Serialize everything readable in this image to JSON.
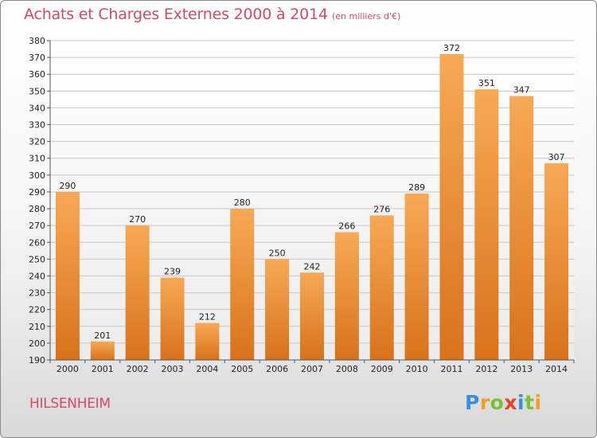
{
  "title": "Achats et Charges Externes 2000 à 2014",
  "subtitle": "(en milliers d'€)",
  "commune": "HILSENHEIM",
  "logo": {
    "letters": [
      {
        "char": "P",
        "color": "#3b8fd6"
      },
      {
        "char": "r",
        "color": "#f0a020"
      },
      {
        "char": "o",
        "color": "#7bbf3a"
      },
      {
        "char": "x",
        "color": "#e8412c"
      },
      {
        "char": "i",
        "color": "#3b8fd6"
      },
      {
        "char": "t",
        "color": "#7bbf3a"
      },
      {
        "char": "i",
        "color": "#f0a020"
      }
    ]
  },
  "colors": {
    "title": "#d04c63",
    "bar_top": "#f7a955",
    "bar_bottom": "#d8721a",
    "grid": "#c8c8c8"
  },
  "chart_data": {
    "type": "bar",
    "title": "Achats et Charges Externes 2000 à 2014",
    "subtitle": "(en milliers d'€)",
    "categories": [
      "2000",
      "2001",
      "2002",
      "2003",
      "2004",
      "2005",
      "2006",
      "2007",
      "2008",
      "2009",
      "2010",
      "2011",
      "2012",
      "2013",
      "2014"
    ],
    "values": [
      290,
      201,
      270,
      239,
      212,
      280,
      250,
      242,
      266,
      276,
      289,
      372,
      351,
      347,
      307
    ],
    "ylim": [
      190,
      380
    ],
    "yticks": [
      190,
      200,
      210,
      220,
      230,
      240,
      250,
      260,
      270,
      280,
      290,
      300,
      310,
      320,
      330,
      340,
      350,
      360,
      370,
      380
    ],
    "grid": true,
    "legend": "none"
  }
}
